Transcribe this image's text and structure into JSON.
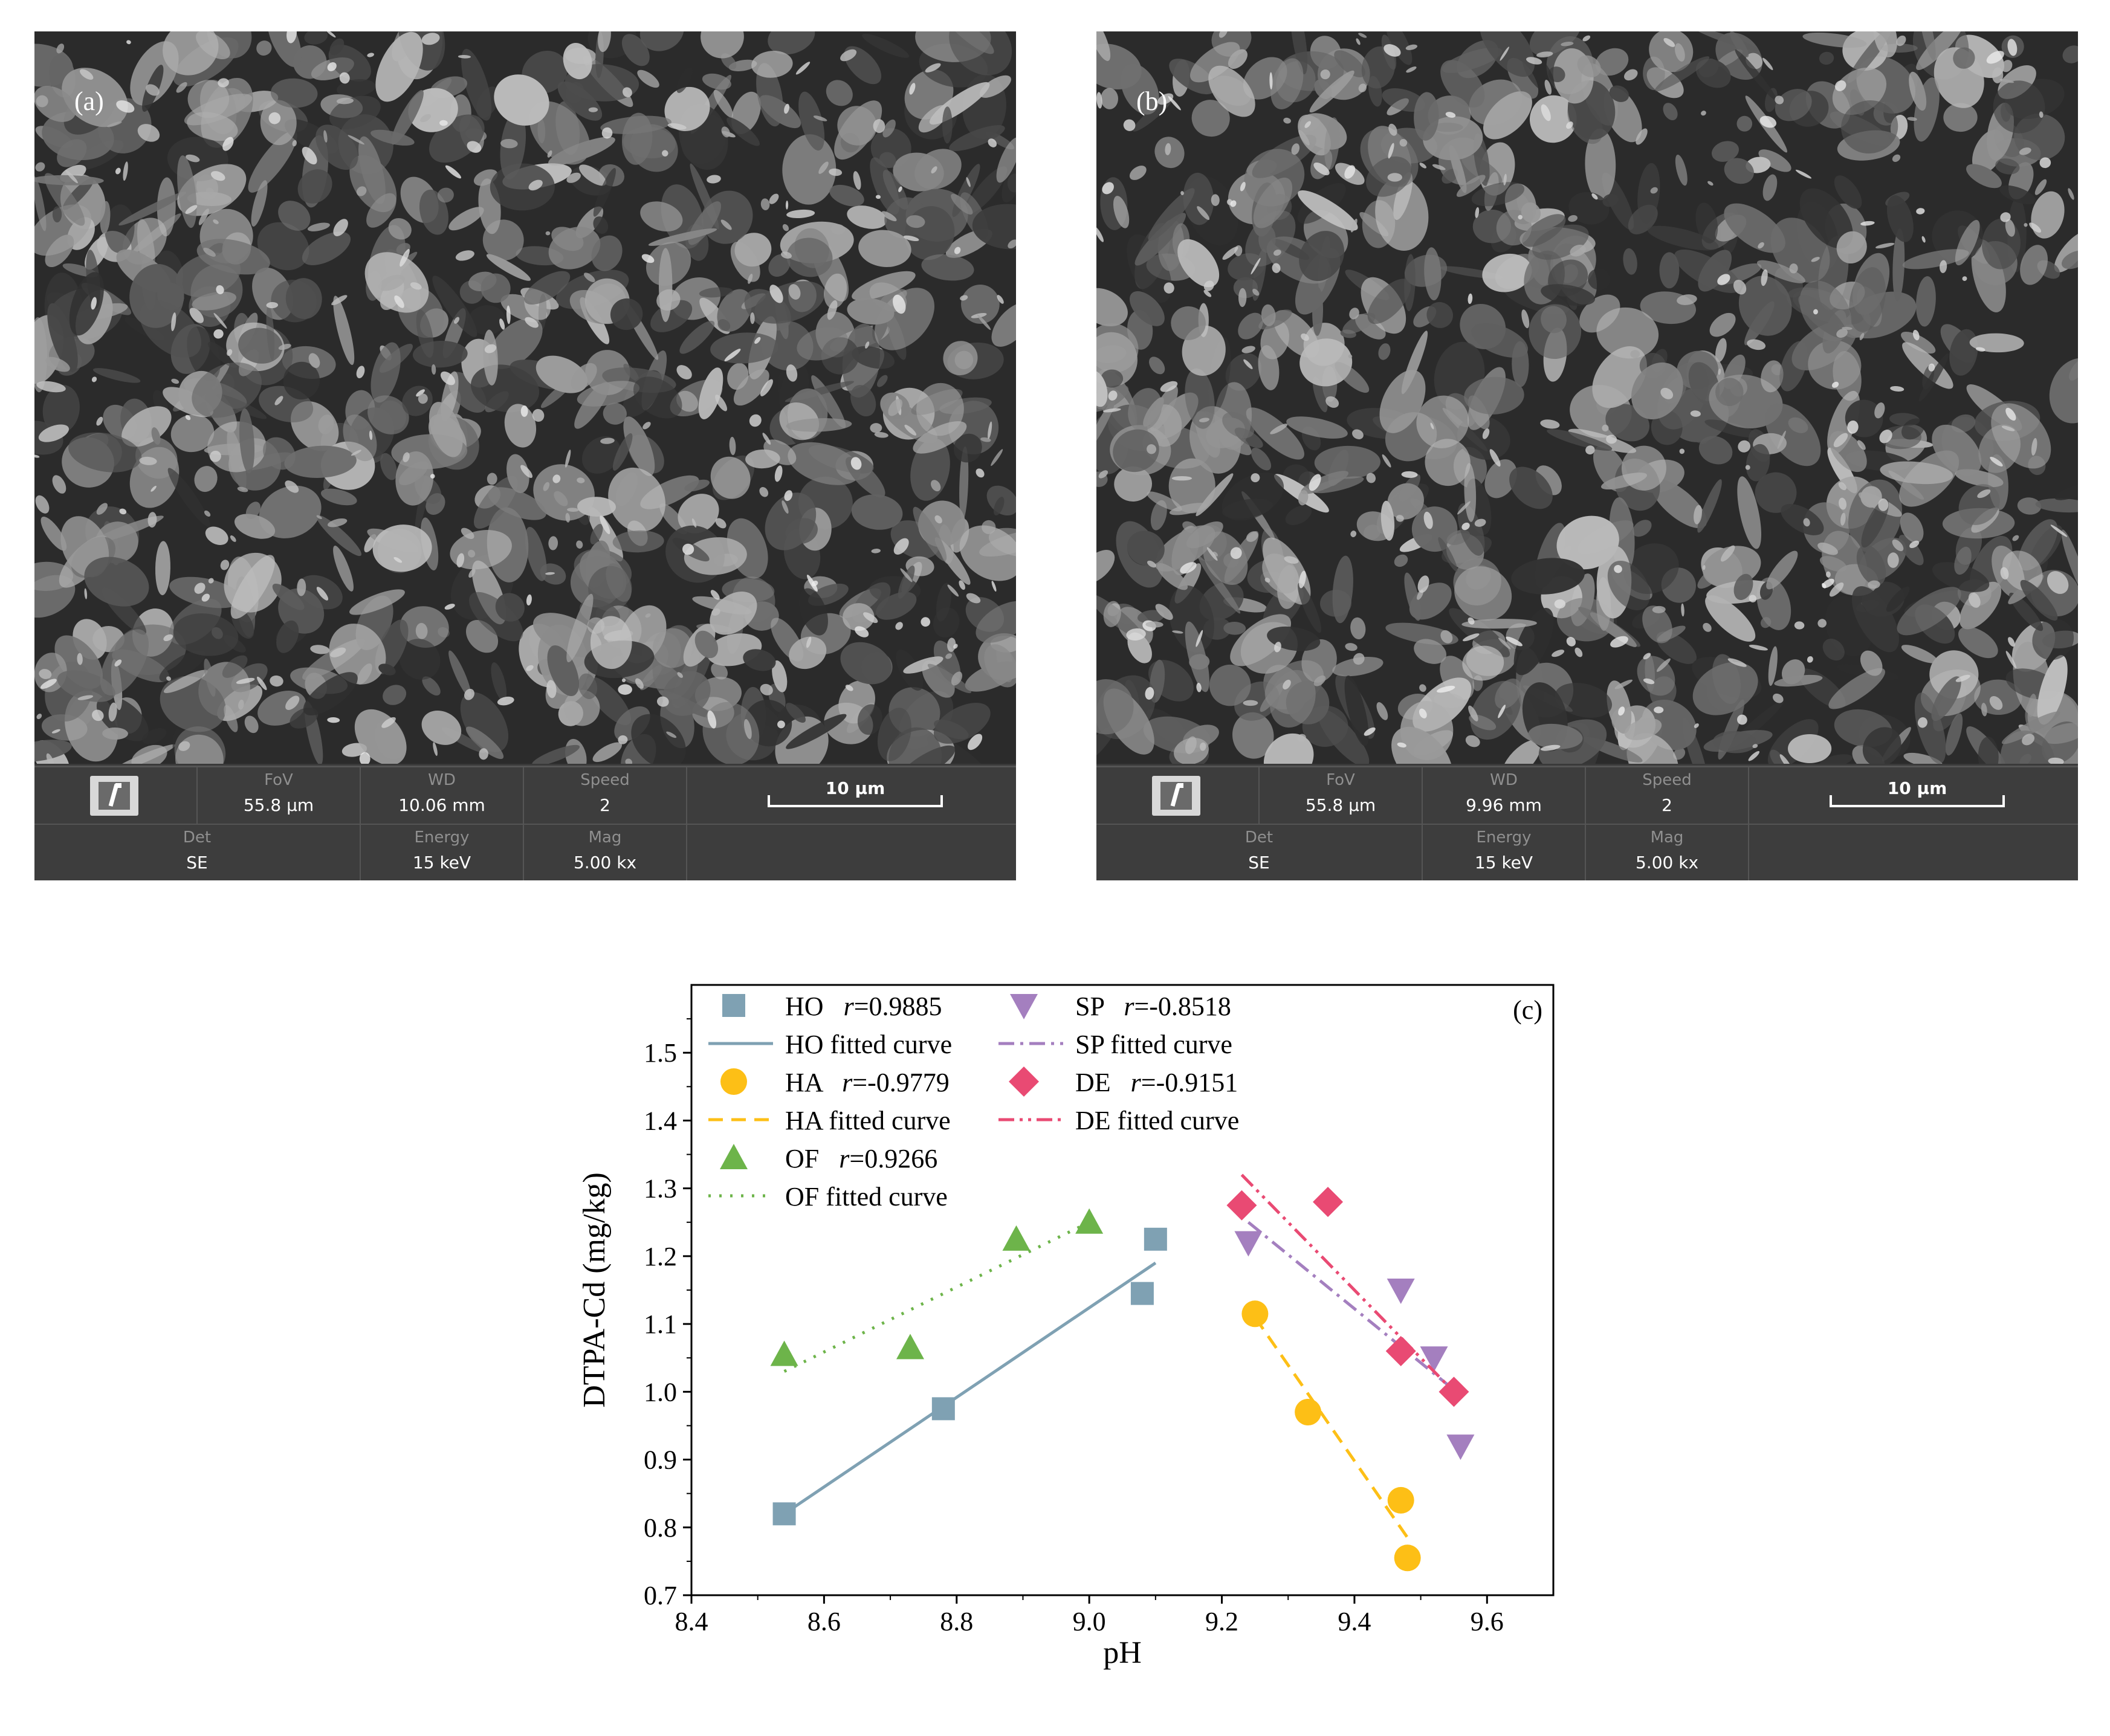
{
  "panels": [
    {
      "letter": "(a)",
      "info": {
        "fov_label": "FoV",
        "fov_value": "55.8 µm",
        "wd_label": "WD",
        "wd_value": "10.06 mm",
        "speed_label": "Speed",
        "speed_value": "2",
        "scale_text": "10 µm",
        "det_label": "Det",
        "det_value": "SE",
        "energy_label": "Energy",
        "energy_value": "15 keV",
        "mag_label": "Mag",
        "mag_value": "5.00 kx"
      }
    },
    {
      "letter": "(b)",
      "info": {
        "fov_label": "FoV",
        "fov_value": "55.8 µm",
        "wd_label": "WD",
        "wd_value": "9.96 mm",
        "speed_label": "Speed",
        "speed_value": "2",
        "scale_text": "10 µm",
        "det_label": "Det",
        "det_value": "SE",
        "energy_label": "Energy",
        "energy_value": "15 keV",
        "mag_label": "Mag",
        "mag_value": "5.00 kx"
      }
    }
  ],
  "chart_data": {
    "type": "scatter",
    "panel_label": "(c)",
    "xlabel": "pH",
    "ylabel": "DTPA-Cd (mg/kg)",
    "xlim": [
      8.4,
      9.7
    ],
    "ylim": [
      0.7,
      1.6
    ],
    "xticks": [
      8.4,
      8.6,
      8.8,
      9.0,
      9.2,
      9.4,
      9.6
    ],
    "xtick_labels": [
      "8.4",
      "8.6",
      "8.8",
      "9.0",
      "9.2",
      "9.4",
      "9.6"
    ],
    "yticks": [
      0.7,
      0.8,
      0.9,
      1.0,
      1.1,
      1.2,
      1.3,
      1.4,
      1.5
    ],
    "ytick_labels": [
      "0.7",
      "0.8",
      "0.9",
      "1.0",
      "1.1",
      "1.2",
      "1.3",
      "1.4",
      "1.5"
    ],
    "grid": false,
    "legend_position": "top-left",
    "series": [
      {
        "name": "HO",
        "r_label": "r",
        "r_value": "=0.9885",
        "fit_label": "HO fitted curve",
        "marker": "square",
        "color": "#7fa1b3",
        "line_style": "solid",
        "x": [
          8.54,
          8.78,
          9.08,
          9.1
        ],
        "y": [
          0.82,
          0.975,
          1.145,
          1.225
        ],
        "fit": [
          [
            8.54,
            0.82
          ],
          [
            9.1,
            1.19
          ]
        ]
      },
      {
        "name": "HA",
        "r_label": "r",
        "r_value": "=-0.9779",
        "fit_label": "HA fitted curve",
        "marker": "circle",
        "color": "#fdbf16",
        "line_style": "dashed",
        "x": [
          9.25,
          9.33,
          9.47,
          9.48
        ],
        "y": [
          1.115,
          0.97,
          0.84,
          0.755
        ],
        "fit": [
          [
            9.25,
            1.11
          ],
          [
            9.48,
            0.785
          ]
        ]
      },
      {
        "name": "OF",
        "r_label": "r",
        "r_value": "=0.9266",
        "fit_label": "OF fitted curve",
        "marker": "triangle-up",
        "color": "#6db44a",
        "line_style": "dotted",
        "x": [
          8.54,
          8.73,
          8.89,
          9.0
        ],
        "y": [
          1.055,
          1.065,
          1.225,
          1.25
        ],
        "fit": [
          [
            8.54,
            1.03
          ],
          [
            9.0,
            1.25
          ]
        ]
      },
      {
        "name": "SP",
        "r_label": "r",
        "r_value": "=-0.8518",
        "fit_label": "SP fitted curve",
        "marker": "triangle-down",
        "color": "#a47fbf",
        "line_style": "dashdot",
        "x": [
          9.24,
          9.47,
          9.52,
          9.56
        ],
        "y": [
          1.22,
          1.15,
          1.05,
          0.92
        ],
        "fit": [
          [
            9.24,
            1.25
          ],
          [
            9.56,
            0.995
          ]
        ]
      },
      {
        "name": "DE",
        "r_label": "r",
        "r_value": "=-0.9151",
        "fit_label": "DE fitted curve",
        "marker": "diamond",
        "color": "#e94a73",
        "line_style": "dashdotdot",
        "x": [
          9.23,
          9.36,
          9.47,
          9.55
        ],
        "y": [
          1.275,
          1.28,
          1.06,
          1.0
        ],
        "fit": [
          [
            9.23,
            1.32
          ],
          [
            9.55,
            1.0
          ]
        ]
      }
    ]
  }
}
